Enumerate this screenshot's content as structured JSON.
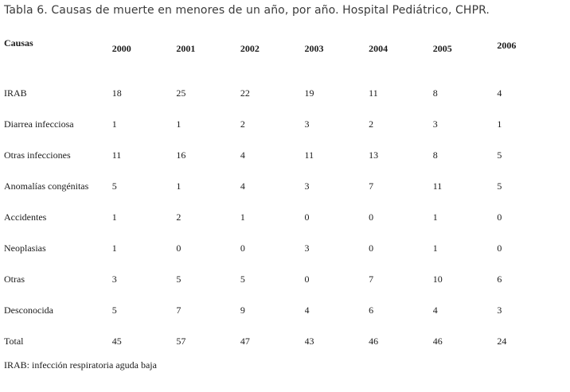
{
  "title": "Tabla 6. Causas de muerte en menores de un año, por año. Hospital Pediátrico, CHPR.",
  "table": {
    "header": {
      "causas_label": "Causas",
      "years": [
        "2000",
        "2001",
        "2002",
        "2003",
        "2004",
        "2005",
        "2006"
      ]
    },
    "rows": [
      {
        "label": "IRAB",
        "values": [
          "18",
          "25",
          "22",
          "19",
          "11",
          "8",
          "4"
        ]
      },
      {
        "label": "Diarrea infecciosa",
        "values": [
          "1",
          "1",
          "2",
          "3",
          "2",
          "3",
          "1"
        ]
      },
      {
        "label": "Otras infecciones",
        "values": [
          "11",
          "16",
          "4",
          "11",
          "13",
          "8",
          "5"
        ]
      },
      {
        "label": "Anomalías congénitas",
        "values": [
          "5",
          "1",
          "4",
          "3",
          "7",
          "11",
          "5"
        ]
      },
      {
        "label": "Accidentes",
        "values": [
          "1",
          "2",
          "1",
          "0",
          "0",
          "1",
          "0"
        ]
      },
      {
        "label": "Neoplasias",
        "values": [
          "1",
          "0",
          "0",
          "3",
          "0",
          "1",
          "0"
        ]
      },
      {
        "label": "Otras",
        "values": [
          "3",
          "5",
          "5",
          "0",
          "7",
          "10",
          "6"
        ]
      },
      {
        "label": "Desconocida",
        "values": [
          "5",
          "7",
          "9",
          "4",
          "6",
          "4",
          "3"
        ]
      },
      {
        "label": "Total",
        "values": [
          "45",
          "57",
          "47",
          "43",
          "46",
          "46",
          "24"
        ]
      }
    ],
    "footnote": "IRAB: infección respiratoria aguda baja"
  },
  "chart_data": {
    "type": "table",
    "title": "Tabla 6. Causas de muerte en menores de un año, por año. Hospital Pediátrico, CHPR.",
    "categories": [
      "2000",
      "2001",
      "2002",
      "2003",
      "2004",
      "2005",
      "2006"
    ],
    "series": [
      {
        "name": "IRAB",
        "values": [
          18,
          25,
          22,
          19,
          11,
          8,
          4
        ]
      },
      {
        "name": "Diarrea infecciosa",
        "values": [
          1,
          1,
          2,
          3,
          2,
          3,
          1
        ]
      },
      {
        "name": "Otras infecciones",
        "values": [
          11,
          16,
          4,
          11,
          13,
          8,
          5
        ]
      },
      {
        "name": "Anomalías congénitas",
        "values": [
          5,
          1,
          4,
          3,
          7,
          11,
          5
        ]
      },
      {
        "name": "Accidentes",
        "values": [
          1,
          2,
          1,
          0,
          0,
          1,
          0
        ]
      },
      {
        "name": "Neoplasias",
        "values": [
          1,
          0,
          0,
          3,
          0,
          1,
          0
        ]
      },
      {
        "name": "Otras",
        "values": [
          3,
          5,
          5,
          0,
          7,
          10,
          6
        ]
      },
      {
        "name": "Desconocida",
        "values": [
          5,
          7,
          9,
          4,
          6,
          4,
          3
        ]
      },
      {
        "name": "Total",
        "values": [
          45,
          57,
          47,
          43,
          46,
          46,
          24
        ]
      }
    ],
    "footnote": "IRAB: infección respiratoria aguda baja"
  }
}
